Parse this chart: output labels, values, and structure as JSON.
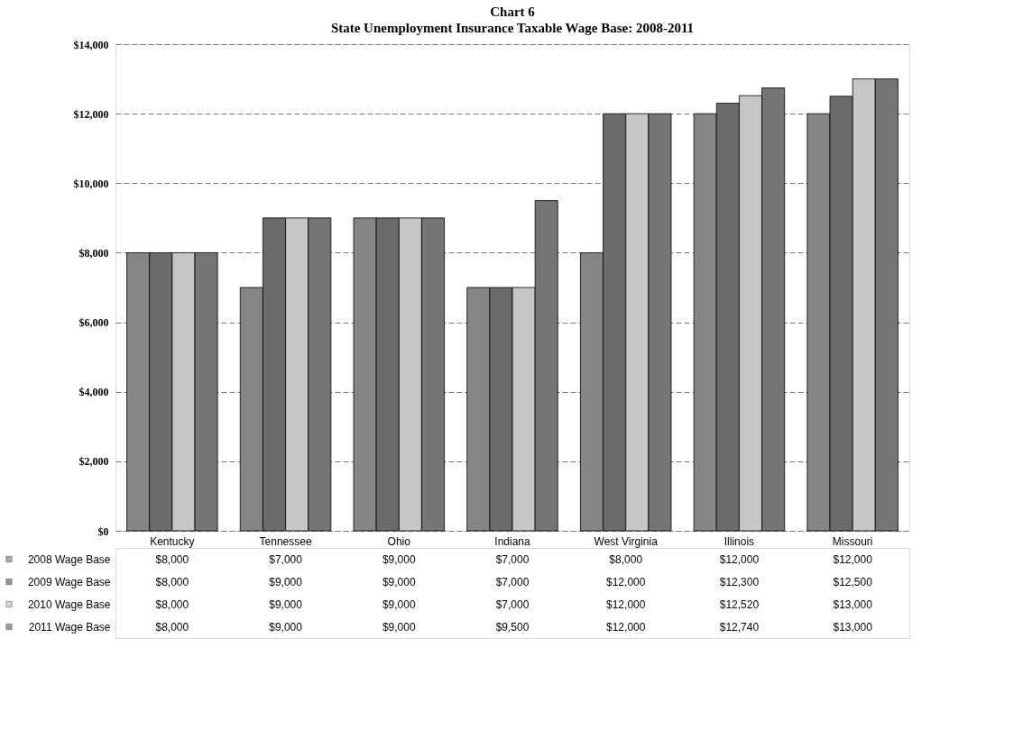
{
  "chart_data": {
    "type": "bar",
    "title": "Chart 6",
    "subtitle": "State Unemployment Insurance Taxable Wage Base:  2008-2011",
    "categories": [
      "Kentucky",
      "Tennessee",
      "Ohio",
      "Indiana",
      "West Virginia",
      "Illinois",
      "Missouri"
    ],
    "series": [
      {
        "name": "2008 Wage Base",
        "color": "#858585",
        "values": [
          8000,
          7000,
          9000,
          7000,
          8000,
          12000,
          12000
        ],
        "value_labels": [
          "$8,000",
          "$7,000",
          "$9,000",
          "$7,000",
          "$8,000",
          "$12,000",
          "$12,000"
        ]
      },
      {
        "name": "2009 Wage Base",
        "color": "#6b6b6b",
        "values": [
          8000,
          9000,
          9000,
          7000,
          12000,
          12300,
          12500
        ],
        "value_labels": [
          "$8,000",
          "$9,000",
          "$9,000",
          "$7,000",
          "$12,000",
          "$12,300",
          "$12,500"
        ]
      },
      {
        "name": "2010 Wage Base",
        "color": "#c6c6c6",
        "values": [
          8000,
          9000,
          9000,
          7000,
          12000,
          12520,
          13000
        ],
        "value_labels": [
          "$8,000",
          "$9,000",
          "$9,000",
          "$7,000",
          "$12,000",
          "$12,520",
          "$13,000"
        ]
      },
      {
        "name": "2011 Wage Base",
        "color": "#757575",
        "values": [
          8000,
          9000,
          9000,
          9500,
          12000,
          12740,
          13000
        ],
        "value_labels": [
          "$8,000",
          "$9,000",
          "$9,000",
          "$9,500",
          "$12,000",
          "$12,740",
          "$13,000"
        ]
      }
    ],
    "ylim": [
      0,
      14000
    ],
    "yticks": [
      {
        "value": 0,
        "label": "$0"
      },
      {
        "value": 2000,
        "label": "$2,000"
      },
      {
        "value": 4000,
        "label": "$4,000"
      },
      {
        "value": 6000,
        "label": "$6,000"
      },
      {
        "value": 8000,
        "label": "$8,000"
      },
      {
        "value": 10000,
        "label": "$10,000"
      },
      {
        "value": 12000,
        "label": "$12,000"
      },
      {
        "value": 14000,
        "label": "$14,000"
      }
    ],
    "grid": "y",
    "legend": "bottom left"
  }
}
